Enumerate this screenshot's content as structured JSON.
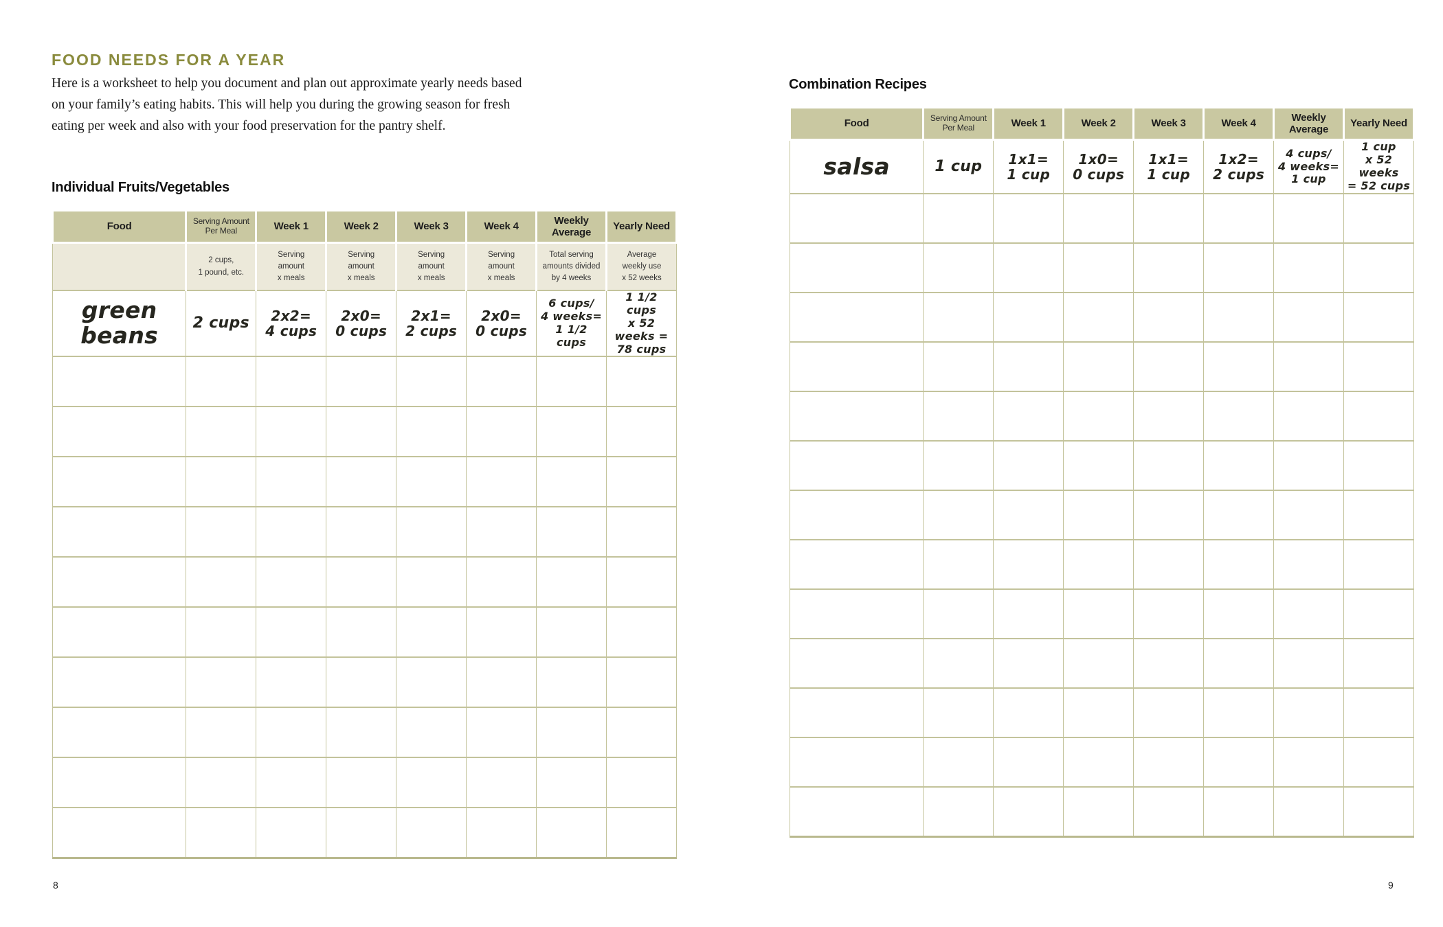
{
  "page": {
    "left_number": "8",
    "right_number": "9"
  },
  "left_section": {
    "title": "FOOD NEEDS FOR A YEAR",
    "intro": "Here is a worksheet to help you document and plan out approximate yearly needs based on your family’s eating habits. This will help you during the growing season for fresh eating per week and also with your food preservation for the pantry shelf.",
    "table_title": "Individual Fruits/Vegetables"
  },
  "right_section": {
    "table_title": "Combination Recipes"
  },
  "table_columns": [
    "Food",
    "Serving Amount\nPer Meal",
    "Week 1",
    "Week 2",
    "Week 3",
    "Week 4",
    "Weekly\nAverage",
    "Yearly Need"
  ],
  "left_table": {
    "subheader": [
      "",
      "2 cups,\n1 pound, etc.",
      "Serving\namount\nx meals",
      "Serving\namount\nx meals",
      "Serving\namount\nx meals",
      "Serving\namount\nx meals",
      "Total serving\namounts divided\nby 4 weeks",
      "Average\nweekly use\nx 52 weeks"
    ],
    "entries": [
      [
        "green beans",
        "2 cups",
        "2x2=\n4 cups",
        "2x0=\n0 cups",
        "2x1=\n2 cups",
        "2x0=\n0 cups",
        "6 cups/\n4 weeks=\n1 1/2 cups",
        "1 1/2 cups\nx 52 weeks =\n78 cups"
      ]
    ],
    "empty_rows": 10
  },
  "right_table": {
    "entries": [
      [
        "salsa",
        "1 cup",
        "1x1=\n1 cup",
        "1x0=\n0 cups",
        "1x1=\n1 cup",
        "1x2=\n2 cups",
        "4 cups/\n4 weeks=\n1 cup",
        "1 cup\nx 52 weeks\n= 52 cups"
      ]
    ],
    "empty_rows": 13
  },
  "colors": {
    "title_olive": "#8a8b3d",
    "header_khaki": "#c9c8a1",
    "subheader_cream": "#ece9da",
    "grid_olive": "#c3c39b"
  }
}
